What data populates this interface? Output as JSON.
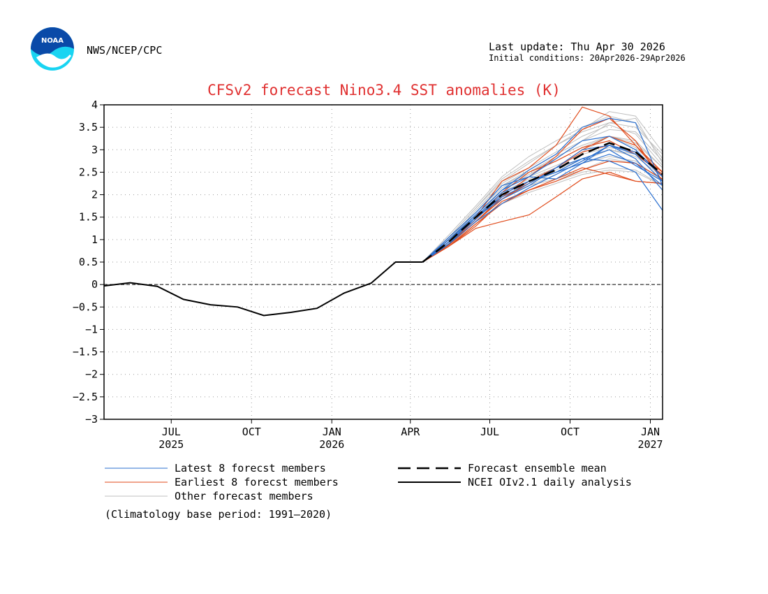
{
  "header": {
    "logo_text": "NOAA",
    "org": "NWS/NCEP/CPC",
    "last_update": "Last update: Thu Apr 30 2026",
    "initial_conditions": "Initial conditions: 20Apr2026-29Apr2026"
  },
  "colors": {
    "title": "#e03030",
    "latest": "#2a6fcf",
    "earliest": "#e04a1a",
    "other": "#bfbfbf",
    "mean": "#000000",
    "analysis": "#000000",
    "logo_blue": "#0a4aa8",
    "logo_cyan": "#19d4f2"
  },
  "chart_data": {
    "type": "line",
    "title": "CFSv2 forecast Nino3.4 SST anomalies (K)",
    "ylim": [
      -3,
      4
    ],
    "yticks": [
      "4",
      "3.5",
      "3",
      "2.5",
      "2",
      "1.5",
      "1",
      "0.5",
      "0",
      "−0.5",
      "−1",
      "−1.5",
      "−2",
      "−2.5",
      "−3"
    ],
    "ytick_values": [
      4,
      3.5,
      3,
      2.5,
      2,
      1.5,
      1,
      0.5,
      0,
      -0.5,
      -1,
      -1.5,
      -2,
      -2.5,
      -3
    ],
    "xlim": [
      "2025-04-15",
      "2027-01-15"
    ],
    "xticks": [
      {
        "date": "2025-07-01",
        "month": "JUL",
        "year": "2025"
      },
      {
        "date": "2025-10-01",
        "month": "OCT",
        "year": ""
      },
      {
        "date": "2026-01-01",
        "month": "JAN",
        "year": "2026"
      },
      {
        "date": "2026-04-01",
        "month": "APR",
        "year": ""
      },
      {
        "date": "2026-07-01",
        "month": "JUL",
        "year": ""
      },
      {
        "date": "2026-10-01",
        "month": "OCT",
        "year": ""
      },
      {
        "date": "2027-01-01",
        "month": "JAN",
        "year": "2027"
      }
    ],
    "grid": true,
    "zero_line": true,
    "analysis": {
      "x": [
        "2025-04-15",
        "2025-05-15",
        "2025-06-15",
        "2025-07-15",
        "2025-08-15",
        "2025-09-15",
        "2025-10-15",
        "2025-11-15",
        "2025-12-15",
        "2026-01-15",
        "2026-02-15",
        "2026-03-15",
        "2026-04-15"
      ],
      "y": [
        -0.03,
        0.04,
        -0.04,
        -0.33,
        -0.45,
        -0.5,
        -0.69,
        -0.62,
        -0.53,
        -0.19,
        0.03,
        0.5,
        0.5
      ]
    },
    "forecast_x": [
      "2026-04-15",
      "2026-05-15",
      "2026-06-15",
      "2026-07-15",
      "2026-08-15",
      "2026-09-15",
      "2026-10-15",
      "2026-11-15",
      "2026-12-15",
      "2027-01-15"
    ],
    "mean": [
      0.5,
      0.95,
      1.5,
      2.0,
      2.3,
      2.55,
      2.9,
      3.15,
      2.95,
      2.45
    ],
    "latest": [
      [
        0.5,
        1.0,
        1.55,
        2.1,
        2.55,
        2.9,
        3.5,
        3.7,
        3.6,
        2.2
      ],
      [
        0.5,
        1.0,
        1.5,
        1.95,
        2.25,
        2.6,
        2.8,
        2.75,
        2.5,
        1.65
      ],
      [
        0.5,
        0.9,
        1.4,
        1.8,
        2.15,
        2.45,
        2.75,
        3.1,
        2.9,
        2.3
      ],
      [
        0.5,
        1.05,
        1.6,
        2.2,
        2.4,
        2.35,
        2.7,
        3.1,
        2.95,
        2.4
      ],
      [
        0.5,
        0.95,
        1.45,
        2.0,
        2.3,
        2.5,
        2.7,
        2.9,
        2.7,
        2.2
      ],
      [
        0.5,
        0.95,
        1.5,
        1.9,
        2.2,
        2.6,
        3.0,
        3.1,
        2.8,
        2.1
      ],
      [
        0.5,
        0.9,
        1.5,
        2.05,
        2.3,
        2.5,
        2.8,
        3.0,
        2.65,
        2.3
      ],
      [
        0.5,
        1.0,
        1.55,
        2.1,
        2.4,
        2.8,
        3.2,
        3.3,
        3.0,
        2.4
      ]
    ],
    "earliest": [
      [
        0.5,
        0.9,
        1.4,
        1.95,
        2.4,
        2.85,
        3.45,
        3.7,
        3.2,
        2.3
      ],
      [
        0.5,
        0.85,
        1.25,
        1.4,
        1.55,
        1.95,
        2.35,
        2.5,
        2.3,
        2.25
      ],
      [
        0.5,
        0.95,
        1.5,
        2.3,
        2.6,
        3.1,
        3.95,
        3.75,
        3.1,
        2.4
      ],
      [
        0.5,
        0.85,
        1.3,
        1.85,
        2.1,
        2.3,
        2.55,
        2.75,
        2.7,
        2.35
      ],
      [
        0.5,
        0.9,
        1.4,
        1.9,
        2.3,
        2.6,
        2.95,
        3.1,
        2.95,
        2.5
      ],
      [
        0.5,
        0.85,
        1.35,
        1.8,
        2.1,
        2.35,
        2.6,
        2.45,
        2.3,
        2.25
      ],
      [
        0.5,
        0.9,
        1.45,
        2.05,
        2.5,
        2.75,
        3.05,
        3.2,
        2.9,
        2.45
      ],
      [
        0.5,
        0.88,
        1.4,
        1.9,
        2.25,
        2.6,
        3.0,
        3.3,
        3.1,
        2.5
      ]
    ],
    "other": [
      [
        0.5,
        1.05,
        1.7,
        2.3,
        2.7,
        3.1,
        3.4,
        3.6,
        3.5,
        2.9
      ],
      [
        0.5,
        1.0,
        1.6,
        2.2,
        2.5,
        2.8,
        3.2,
        3.6,
        3.7,
        2.7
      ],
      [
        0.5,
        0.95,
        1.5,
        2.05,
        2.35,
        2.6,
        2.95,
        3.3,
        3.2,
        2.6
      ],
      [
        0.5,
        0.9,
        1.4,
        1.95,
        2.2,
        2.35,
        2.55,
        2.8,
        2.7,
        2.35
      ],
      [
        0.5,
        0.95,
        1.55,
        2.1,
        2.45,
        2.75,
        3.05,
        3.3,
        3.05,
        2.5
      ],
      [
        0.5,
        1.1,
        1.75,
        2.4,
        2.85,
        3.2,
        3.5,
        3.75,
        3.6,
        2.8
      ],
      [
        0.5,
        0.9,
        1.45,
        2.0,
        2.3,
        2.55,
        2.8,
        3.0,
        2.85,
        2.4
      ],
      [
        0.5,
        0.85,
        1.35,
        1.85,
        2.1,
        2.3,
        2.5,
        2.6,
        2.55,
        2.2
      ],
      [
        0.5,
        1.0,
        1.65,
        2.25,
        2.6,
        2.95,
        3.3,
        3.55,
        3.35,
        2.65
      ],
      [
        0.5,
        0.95,
        1.5,
        2.1,
        2.4,
        2.65,
        2.9,
        3.05,
        2.95,
        2.5
      ],
      [
        0.5,
        1.05,
        1.7,
        2.35,
        2.75,
        3.1,
        3.45,
        3.85,
        3.75,
        2.95
      ],
      [
        0.5,
        0.9,
        1.4,
        1.9,
        2.25,
        2.5,
        2.7,
        2.85,
        2.75,
        2.3
      ],
      [
        0.5,
        1.0,
        1.6,
        2.2,
        2.55,
        2.9,
        3.2,
        3.45,
        3.4,
        2.75
      ],
      [
        0.5,
        0.92,
        1.45,
        1.95,
        2.2,
        2.45,
        2.75,
        3.0,
        2.9,
        2.45
      ],
      [
        0.5,
        1.02,
        1.6,
        2.15,
        2.5,
        2.85,
        3.1,
        3.3,
        3.15,
        2.6
      ],
      [
        0.5,
        0.88,
        1.35,
        1.8,
        2.05,
        2.25,
        2.45,
        2.55,
        2.5,
        2.2
      ]
    ]
  },
  "legend": {
    "latest": "Latest 8 forecst members",
    "earliest": "Earliest 8 forecst members",
    "other": "Other forecast members",
    "mean": "Forecast ensemble mean",
    "analysis": "NCEI OIv2.1 daily analysis"
  },
  "footnote": "(Climatology base period: 1991—2020)"
}
